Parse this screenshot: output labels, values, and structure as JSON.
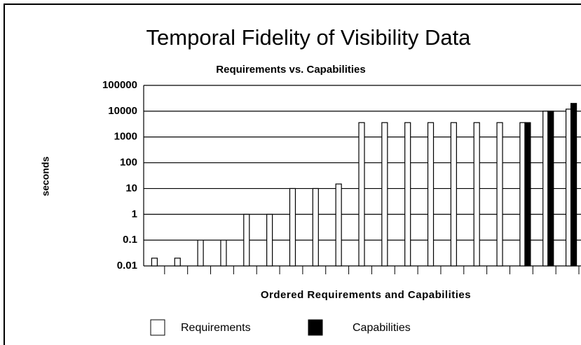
{
  "chart_data": {
    "type": "bar",
    "title": "Temporal Fidelity of Visibility Data",
    "subtitle": "Requirements vs. Capabilities",
    "y_label": "seconds",
    "x_label": "Ordered Requirements and Capabilities",
    "categories": [
      null,
      null,
      null,
      null,
      null,
      null,
      null,
      null,
      null,
      null,
      null,
      null,
      null,
      null,
      null,
      null,
      null,
      null,
      null
    ],
    "series": [
      {
        "name": "Requirements",
        "color": "#ffffff",
        "values": [
          0.02,
          0.02,
          0.1,
          0.1,
          1,
          1,
          10,
          10,
          15,
          3600,
          3600,
          3600,
          3600,
          3600,
          3600,
          3600,
          3600,
          10000,
          12000
        ]
      },
      {
        "name": "Capabilities",
        "color": "#000000",
        "values": [
          null,
          null,
          null,
          null,
          null,
          null,
          null,
          null,
          null,
          null,
          null,
          null,
          null,
          null,
          null,
          null,
          3600,
          10000,
          20000
        ]
      }
    ],
    "log_scale": true,
    "ylim": [
      0.01,
      100000
    ],
    "yticks": [
      0.01,
      0.1,
      1,
      10,
      100,
      1000,
      10000,
      100000
    ],
    "grid": true
  }
}
